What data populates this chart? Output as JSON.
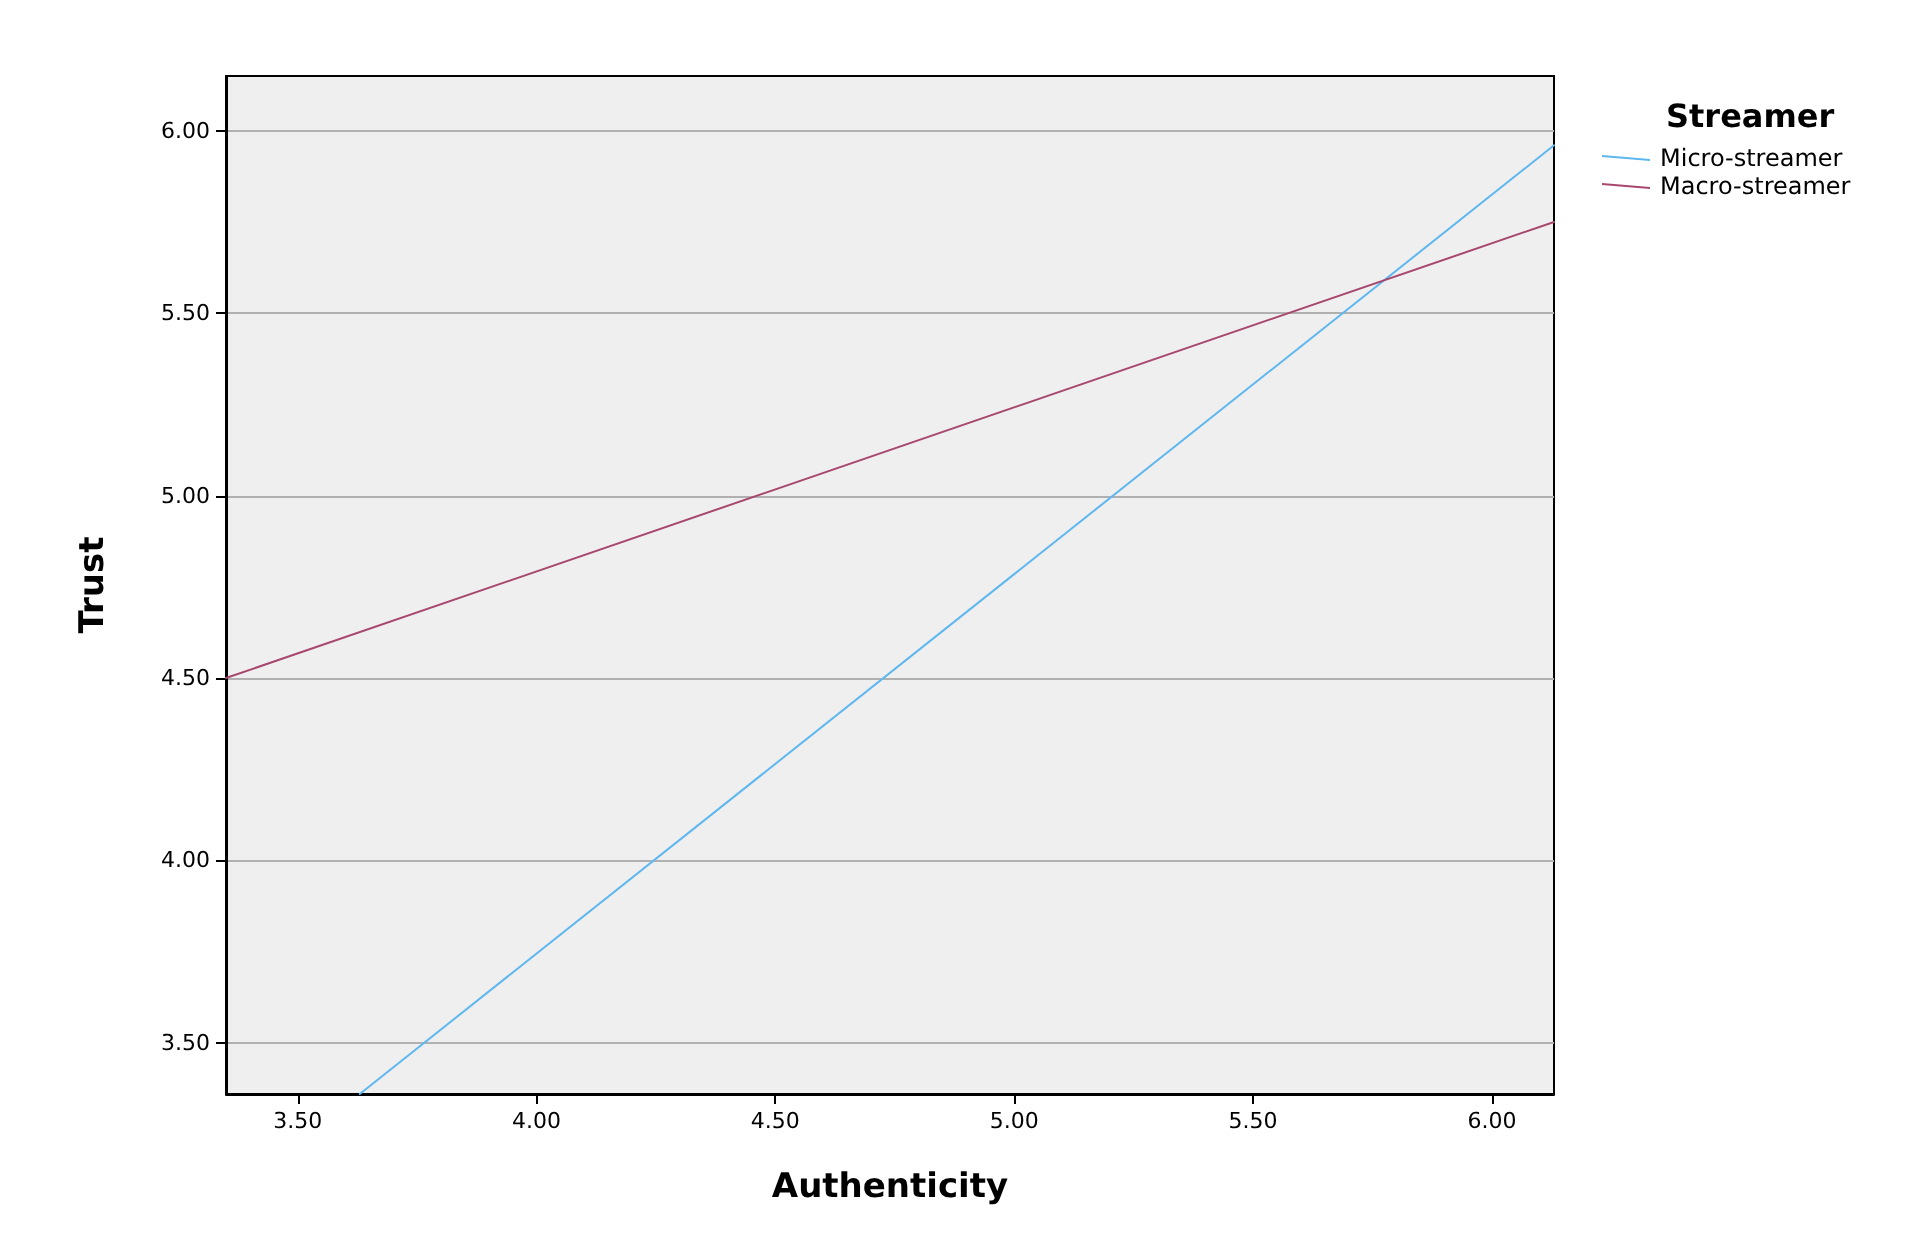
{
  "chart_data": {
    "type": "line",
    "xlabel": "Authenticity",
    "ylabel": "Trust",
    "legend_title": "Streamer",
    "legend": "top right",
    "grid": "y",
    "marker": "none",
    "line_style": "solid",
    "xlim": [
      3.35,
      6.13
    ],
    "xticks": [
      {
        "value": 3.5,
        "label": "3.50"
      },
      {
        "value": 4,
        "label": "4.00"
      },
      {
        "value": 4.5,
        "label": "4.50"
      },
      {
        "value": 5,
        "label": "5.00"
      },
      {
        "value": 5.5,
        "label": "5.50"
      },
      {
        "value": 6,
        "label": "6.00"
      }
    ],
    "ylim": [
      3.36,
      6.15
    ],
    "yticks": [
      {
        "value": 3.5,
        "label": "3.50"
      },
      {
        "value": 4,
        "label": "4.00"
      },
      {
        "value": 4.5,
        "label": "4.50"
      },
      {
        "value": 5,
        "label": "5.00"
      },
      {
        "value": 5.5,
        "label": "5.50"
      },
      {
        "value": 6,
        "label": "6.00"
      }
    ],
    "series": [
      {
        "name": "Micro-streamer",
        "color": "#5fb7f0",
        "x": [
          3.63,
          6.13
        ],
        "values": [
          3.36,
          5.96
        ]
      },
      {
        "name": "Macro-streamer",
        "color": "#a8476e",
        "x": [
          3.35,
          6.13
        ],
        "values": [
          4.5,
          5.75
        ]
      }
    ]
  }
}
